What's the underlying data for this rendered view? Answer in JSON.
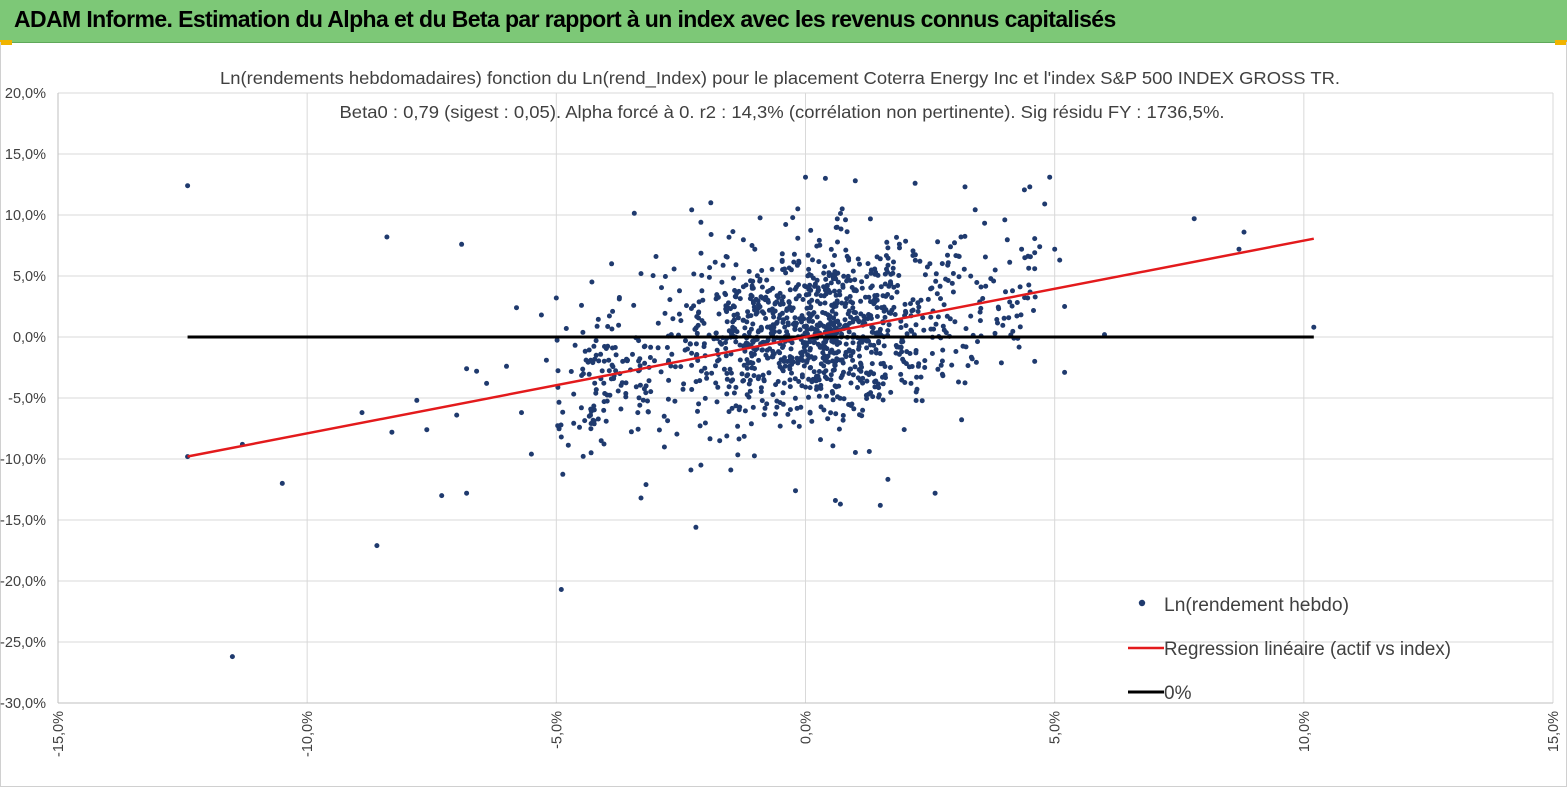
{
  "report": {
    "title": "ADAM Informe. Estimation du Alpha et du Beta par rapport à un index avec les revenus connus capitalisés"
  },
  "colors": {
    "banner": "#7dc877",
    "points": "#1f3a6e",
    "regression": "#e31a1c",
    "zero_line": "#000000",
    "grid": "#d9d9d9"
  },
  "chart_data": {
    "type": "scatter",
    "title_line1": "Ln(rendements hebdomadaires) fonction du Ln(rend_Index) pour le placement Coterra Energy Inc et l'index S&P 500 INDEX GROSS TR.",
    "title_line2": "Beta0 : 0,79 (sigest : 0,05). Alpha forcé à 0. r2 : 14,3% (corrélation non pertinente). Sig résidu FY : 1736,5%.",
    "xlim": [
      -15,
      15
    ],
    "ylim": [
      -30,
      20
    ],
    "x_ticks": [
      -15,
      -10,
      -5,
      0,
      5,
      10,
      15
    ],
    "y_ticks": [
      -30,
      -25,
      -20,
      -15,
      -10,
      -5,
      0,
      5,
      10,
      15,
      20
    ],
    "x_tick_labels": [
      "-15,0%",
      "-10,0%",
      "-5,0%",
      "0,0%",
      "5,0%",
      "10,0%",
      "15,0%"
    ],
    "y_tick_labels": [
      "-30,0%",
      "-25,0%",
      "-20,0%",
      "-15,0%",
      "-10,0%",
      "-5,0%",
      "0,0%",
      "5,0%",
      "10,0%",
      "15,0%",
      "20,0%"
    ],
    "beta": 0.79,
    "regression_x_range": [
      -12.4,
      10.2
    ],
    "zero_line_x_range": [
      -12.4,
      10.2
    ],
    "legend": {
      "points": "Ln(rendement hebdo)",
      "regression": "Regression linéaire (actif vs index)",
      "zero": "0%"
    },
    "outliers": [
      [
        -12.4,
        12.4
      ],
      [
        -11.5,
        -26.2
      ],
      [
        -11.3,
        -8.8
      ],
      [
        -10.5,
        -12.0
      ],
      [
        -8.9,
        -6.2
      ],
      [
        -8.6,
        -17.1
      ],
      [
        -8.4,
        8.2
      ],
      [
        -8.3,
        -7.8
      ],
      [
        -7.8,
        -5.2
      ],
      [
        -7.6,
        -7.6
      ],
      [
        -7.3,
        -13.0
      ],
      [
        -6.9,
        7.6
      ],
      [
        -6.8,
        -12.8
      ],
      [
        -6.8,
        -2.6
      ],
      [
        -6.6,
        -2.8
      ],
      [
        -6.0,
        -2.4
      ],
      [
        -5.8,
        2.4
      ],
      [
        -5.7,
        -6.2
      ],
      [
        -5.5,
        -9.6
      ],
      [
        -5.3,
        1.8
      ],
      [
        -5.2,
        -1.9
      ],
      [
        -5.0,
        3.2
      ],
      [
        -4.9,
        -20.7
      ],
      [
        -4.8,
        0.7
      ],
      [
        -7.0,
        -6.4
      ],
      [
        -6.4,
        -3.8
      ],
      [
        -12.4,
        -9.8
      ],
      [
        -2.2,
        -15.6
      ],
      [
        0.0,
        13.1
      ],
      [
        0.4,
        13.0
      ],
      [
        1.0,
        12.8
      ],
      [
        2.2,
        12.6
      ],
      [
        3.2,
        12.3
      ],
      [
        4.5,
        12.3
      ],
      [
        4.9,
        13.1
      ],
      [
        4.8,
        10.9
      ],
      [
        4.0,
        9.6
      ],
      [
        5.0,
        7.2
      ],
      [
        5.1,
        6.3
      ],
      [
        5.2,
        2.5
      ],
      [
        5.2,
        -2.9
      ],
      [
        6.0,
        0.2
      ],
      [
        7.8,
        9.7
      ],
      [
        8.7,
        7.2
      ],
      [
        8.8,
        8.6
      ],
      [
        10.2,
        0.8
      ],
      [
        -0.2,
        -12.6
      ],
      [
        0.7,
        -13.7
      ],
      [
        0.6,
        -13.4
      ],
      [
        1.5,
        -13.8
      ],
      [
        2.6,
        -12.8
      ],
      [
        -3.3,
        -13.2
      ],
      [
        -3.2,
        -12.1
      ],
      [
        -2.1,
        -10.5
      ],
      [
        -1.5,
        -10.9
      ],
      [
        -2.3,
        -10.9
      ],
      [
        -4.1,
        -8.5
      ],
      [
        -4.9,
        -8.2
      ],
      [
        -1.9,
        11.0
      ],
      [
        -2.1,
        9.4
      ],
      [
        -3.0,
        6.6
      ],
      [
        -3.3,
        5.2
      ],
      [
        4.6,
        5.6
      ],
      [
        4.7,
        7.4
      ],
      [
        4.4,
        6.5
      ],
      [
        4.6,
        -2.0
      ]
    ]
  }
}
